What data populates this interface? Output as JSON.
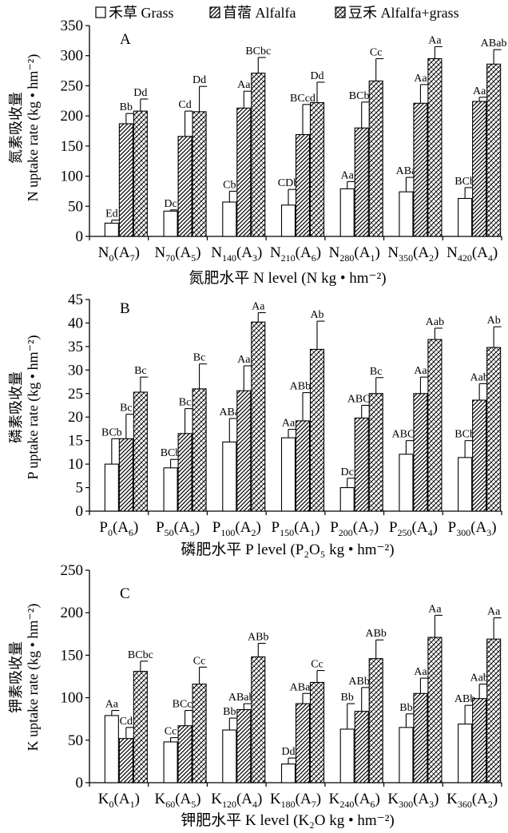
{
  "legend": [
    {
      "label": "禾草 Grass",
      "pattern": "none"
    },
    {
      "label": "苜蓿 Alfalfa",
      "pattern": "diag"
    },
    {
      "label": "豆禾 Alfalfa+grass",
      "pattern": "cross"
    }
  ],
  "chart_data": [
    {
      "type": "bar",
      "panel": "A",
      "ylabel_cn": "氮素吸收量",
      "ylabel": "N uptake rate (kg • hm⁻²)",
      "xlabel_cn": "氮肥水平",
      "xlabel": "N level (N kg • hm⁻²)",
      "ylim": [
        0,
        350
      ],
      "yticks": [
        0,
        50,
        100,
        150,
        200,
        250,
        300,
        350
      ],
      "categories": [
        {
          "b": "N",
          "s": "0",
          "a": "(A",
          "as": "7",
          "e": ")"
        },
        {
          "b": "N",
          "s": "70",
          "a": "(A",
          "as": "5",
          "e": ")"
        },
        {
          "b": "N",
          "s": "140",
          "a": "(A",
          "as": "3",
          "e": ")"
        },
        {
          "b": "N",
          "s": "210",
          "a": "(A",
          "as": "6",
          "e": ")"
        },
        {
          "b": "N",
          "s": "280",
          "a": "(A",
          "as": "1",
          "e": ")"
        },
        {
          "b": "N",
          "s": "350",
          "a": "(A",
          "as": "2",
          "e": ")"
        },
        {
          "b": "N",
          "s": "420",
          "a": "(A",
          "as": "4",
          "e": ")"
        }
      ],
      "series": [
        {
          "values": [
            22,
            42,
            57,
            52,
            79,
            74,
            63
          ],
          "errors": [
            5,
            2,
            18,
            26,
            12,
            24,
            18
          ],
          "labels": [
            "Ed",
            "Dc",
            "Cb",
            "CDb",
            "Aa",
            "ABa",
            "BCb"
          ]
        },
        {
          "values": [
            187,
            166,
            213,
            169,
            180,
            221,
            224
          ],
          "errors": [
            17,
            42,
            28,
            50,
            43,
            31,
            7
          ],
          "labels": [
            "Bb",
            "Cd",
            "Aa",
            "BCcd",
            "BCbc",
            "Aa",
            "Aa"
          ]
        },
        {
          "values": [
            208,
            207,
            271,
            222,
            258,
            295,
            286
          ],
          "errors": [
            20,
            42,
            26,
            34,
            37,
            20,
            24
          ],
          "labels": [
            "Dd",
            "Dd",
            "BCbc",
            "Dd",
            "Cc",
            "Aa",
            "ABab"
          ]
        }
      ]
    },
    {
      "type": "bar",
      "panel": "B",
      "ylabel_cn": "磷素吸收量",
      "ylabel": "P uptake rate (kg • hm⁻²)",
      "xlabel_cn": "磷肥水平",
      "xlabel": "P level (P₂O₅ kg • hm⁻²)",
      "ylim": [
        0,
        45
      ],
      "yticks": [
        0,
        5,
        10,
        15,
        20,
        25,
        30,
        35,
        40,
        45
      ],
      "categories": [
        {
          "b": "P",
          "s": "0",
          "a": "(A",
          "as": "6",
          "e": ")"
        },
        {
          "b": "P",
          "s": "50",
          "a": "(A",
          "as": "5",
          "e": ")"
        },
        {
          "b": "P",
          "s": "100",
          "a": "(A",
          "as": "2",
          "e": ")"
        },
        {
          "b": "P",
          "s": "150",
          "a": "(A",
          "as": "1",
          "e": ")"
        },
        {
          "b": "P",
          "s": "200",
          "a": "(A",
          "as": "7",
          "e": ")"
        },
        {
          "b": "P",
          "s": "250",
          "a": "(A",
          "as": "4",
          "e": ")"
        },
        {
          "b": "P",
          "s": "300",
          "a": "(A",
          "as": "3",
          "e": ")"
        }
      ],
      "series": [
        {
          "values": [
            10,
            9.2,
            14.7,
            15.6,
            5.0,
            12.1,
            11.4
          ],
          "errors": [
            5.4,
            1.8,
            5.0,
            1.8,
            2.0,
            2.9,
            3.6
          ],
          "labels": [
            "BCb",
            "BCb",
            "ABa",
            "Aa",
            "Dc",
            "ABCb",
            "BCb"
          ]
        },
        {
          "values": [
            15.4,
            16.5,
            25.6,
            19.2,
            19.8,
            25.0,
            23.6
          ],
          "errors": [
            5.2,
            5.3,
            5.3,
            6.0,
            2.7,
            3.5,
            3.5
          ],
          "labels": [
            "Bc",
            "Bc",
            "Aa",
            "ABbc",
            "ABCb",
            "Aa",
            "Aab"
          ]
        },
        {
          "values": [
            25.3,
            26.0,
            40.2,
            34.4,
            25.0,
            36.5,
            34.8
          ],
          "errors": [
            3.2,
            5.3,
            2.0,
            6.0,
            3.4,
            2.4,
            4.4
          ],
          "labels": [
            "Bc",
            "Bc",
            "Aa",
            "Ab",
            "Bc",
            "Aab",
            "Ab"
          ]
        }
      ]
    },
    {
      "type": "bar",
      "panel": "C",
      "ylabel_cn": "钾素吸收量",
      "ylabel": "K uptake rate (kg • hm⁻²)",
      "xlabel_cn": "钾肥水平",
      "xlabel": "K level (K₂O kg • hm⁻²)",
      "ylim": [
        0,
        250
      ],
      "yticks": [
        0,
        50,
        100,
        150,
        200,
        250
      ],
      "categories": [
        {
          "b": "K",
          "s": "0",
          "a": "(A",
          "as": "1",
          "e": ")"
        },
        {
          "b": "K",
          "s": "60",
          "a": "(A",
          "as": "5",
          "e": ")"
        },
        {
          "b": "K",
          "s": "120",
          "a": "(A",
          "as": "4",
          "e": ")"
        },
        {
          "b": "K",
          "s": "180",
          "a": "(A",
          "as": "7",
          "e": ")"
        },
        {
          "b": "K",
          "s": "240",
          "a": "(A",
          "as": "6",
          "e": ")"
        },
        {
          "b": "K",
          "s": "300",
          "a": "(A",
          "as": "3",
          "e": ")"
        },
        {
          "b": "K",
          "s": "360",
          "a": "(A",
          "as": "2",
          "e": ")"
        }
      ],
      "series": [
        {
          "values": [
            79,
            48,
            62,
            22,
            63,
            65,
            69
          ],
          "errors": [
            6,
            5,
            14,
            7,
            30,
            16,
            22
          ],
          "labels": [
            "Aa",
            "Cc",
            "Bb",
            "Dd",
            "Bb",
            "Bb",
            "ABb"
          ]
        },
        {
          "values": [
            52,
            67,
            86,
            93,
            84,
            105,
            99
          ],
          "errors": [
            13,
            18,
            7,
            12,
            28,
            18,
            17
          ],
          "labels": [
            "Cd",
            "BCcd",
            "ABabc",
            "ABab",
            "ABbc",
            "Aa",
            "Aab"
          ]
        },
        {
          "values": [
            131,
            116,
            148,
            118,
            146,
            171,
            169
          ],
          "errors": [
            12,
            20,
            16,
            14,
            22,
            26,
            25
          ],
          "labels": [
            "BCbc",
            "Cc",
            "ABb",
            "Cc",
            "ABb",
            "Aa",
            "Aa"
          ]
        }
      ]
    }
  ]
}
